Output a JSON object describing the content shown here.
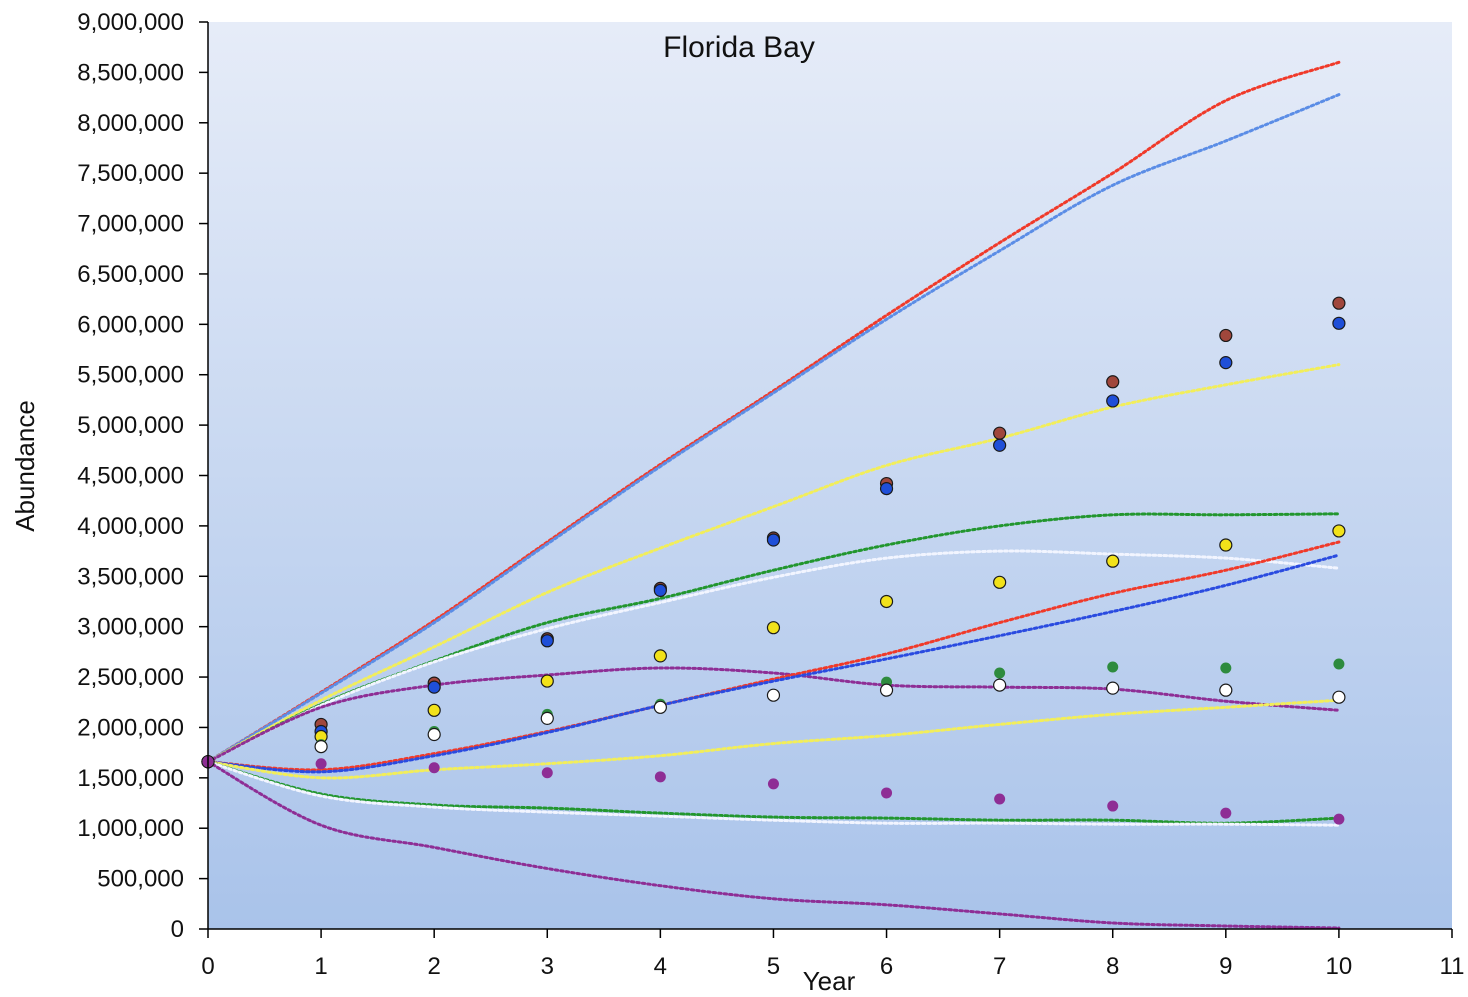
{
  "chart_data": {
    "type": "scatter",
    "title": "Florida Bay",
    "xlabel": "Year",
    "ylabel": "Abundance",
    "xlim": [
      0,
      11
    ],
    "ylim": [
      0,
      9000000
    ],
    "x_ticks": [
      "0",
      "1",
      "2",
      "3",
      "4",
      "5",
      "6",
      "7",
      "8",
      "9",
      "10",
      "11"
    ],
    "y_ticks": [
      "0",
      "500,000",
      "1,000,000",
      "1,500,000",
      "2,000,000",
      "2,500,000",
      "3,000,000",
      "3,500,000",
      "4,000,000",
      "4,500,000",
      "5,000,000",
      "5,500,000",
      "6,000,000",
      "6,500,000",
      "7,000,000",
      "7,500,000",
      "8,000,000",
      "8,500,000",
      "9,000,000"
    ],
    "grid": false,
    "background": {
      "top": "#e6ecf8",
      "bottom": "#a9c3ea"
    },
    "series": [
      {
        "color": "#a0473c",
        "marker": "circle-outlined",
        "x": [
          0,
          1,
          2,
          3,
          4,
          5,
          6,
          7,
          8,
          9,
          10
        ],
        "values": [
          1660000,
          2030000,
          2440000,
          2880000,
          3380000,
          3880000,
          4420000,
          4920000,
          5430000,
          5890000,
          6210000
        ]
      },
      {
        "color": "#1f4fd8",
        "marker": "circle-outlined",
        "x": [
          0,
          1,
          2,
          3,
          4,
          5,
          6,
          7,
          8,
          9,
          10
        ],
        "values": [
          1660000,
          1960000,
          2400000,
          2860000,
          3360000,
          3860000,
          4370000,
          4800000,
          5240000,
          5620000,
          6010000
        ]
      },
      {
        "color": "#f2e21a",
        "marker": "circle-outlined",
        "x": [
          0,
          1,
          2,
          3,
          4,
          5,
          6,
          7,
          8,
          9,
          10
        ],
        "values": [
          1660000,
          1910000,
          2170000,
          2460000,
          2710000,
          2990000,
          3250000,
          3440000,
          3650000,
          3810000,
          3950000
        ]
      },
      {
        "color": "#2e8b3e",
        "marker": "dot",
        "x": [
          0,
          1,
          2,
          3,
          4,
          5,
          6,
          7,
          8,
          9,
          10
        ],
        "values": [
          1660000,
          1830000,
          1960000,
          2130000,
          2230000,
          2320000,
          2450000,
          2540000,
          2600000,
          2590000,
          2630000
        ]
      },
      {
        "color": "#ffffff",
        "marker": "circle-outlined",
        "x": [
          0,
          1,
          2,
          3,
          4,
          5,
          6,
          7,
          8,
          9,
          10
        ],
        "values": [
          1660000,
          1810000,
          1930000,
          2090000,
          2200000,
          2320000,
          2370000,
          2420000,
          2390000,
          2370000,
          2300000
        ]
      },
      {
        "color": "#8e2e95",
        "marker": "dot",
        "x": [
          0,
          1,
          2,
          3,
          4,
          5,
          6,
          7,
          8,
          9,
          10
        ],
        "values": [
          1660000,
          1640000,
          1600000,
          1550000,
          1510000,
          1440000,
          1350000,
          1290000,
          1220000,
          1150000,
          1090000
        ]
      }
    ],
    "bounds": [
      {
        "color": "#f03a2a",
        "x": [
          0,
          1,
          2,
          3,
          4,
          5,
          6,
          7,
          8,
          9,
          10
        ],
        "values": [
          1660000,
          2350000,
          3060000,
          3840000,
          4610000,
          5340000,
          6090000,
          6810000,
          7500000,
          8220000,
          8600000
        ]
      },
      {
        "color": "#5b8de6",
        "x": [
          0,
          1,
          2,
          3,
          4,
          5,
          6,
          7,
          8,
          9,
          10
        ],
        "values": [
          1660000,
          2340000,
          3040000,
          3820000,
          4590000,
          5320000,
          6050000,
          6730000,
          7380000,
          7820000,
          8280000
        ]
      },
      {
        "color": "#f2ee5a",
        "x": [
          0,
          1,
          2,
          3,
          4,
          5,
          6,
          7,
          8,
          9,
          10
        ],
        "values": [
          1660000,
          2270000,
          2800000,
          3340000,
          3780000,
          4190000,
          4600000,
          4870000,
          5180000,
          5400000,
          5600000
        ]
      },
      {
        "color": "#22962e",
        "x": [
          0,
          1,
          2,
          3,
          4,
          5,
          6,
          7,
          8,
          9,
          10
        ],
        "values": [
          1660000,
          2230000,
          2660000,
          3040000,
          3280000,
          3560000,
          3810000,
          4000000,
          4110000,
          4110000,
          4120000
        ]
      },
      {
        "color": "#f2f5ff",
        "x": [
          0,
          1,
          2,
          3,
          4,
          5,
          6,
          7,
          8,
          9,
          10
        ],
        "values": [
          1660000,
          2220000,
          2650000,
          2980000,
          3240000,
          3490000,
          3680000,
          3750000,
          3720000,
          3680000,
          3580000
        ]
      },
      {
        "color": "#8e2e95",
        "x": [
          0,
          1,
          2,
          3,
          4,
          5,
          6,
          7,
          8,
          9,
          10
        ],
        "values": [
          1660000,
          2200000,
          2420000,
          2520000,
          2590000,
          2540000,
          2420000,
          2400000,
          2380000,
          2260000,
          2170000
        ]
      },
      {
        "color": "#f03a2a",
        "x": [
          0,
          1,
          2,
          3,
          4,
          5,
          6,
          7,
          8,
          9,
          10
        ],
        "values": [
          1660000,
          1580000,
          1740000,
          1960000,
          2220000,
          2480000,
          2730000,
          3040000,
          3330000,
          3560000,
          3840000
        ]
      },
      {
        "color": "#2a4be0",
        "x": [
          0,
          1,
          2,
          3,
          4,
          5,
          6,
          7,
          8,
          9,
          10
        ],
        "values": [
          1660000,
          1560000,
          1720000,
          1950000,
          2220000,
          2460000,
          2680000,
          2910000,
          3150000,
          3410000,
          3710000
        ]
      },
      {
        "color": "#f2ee5a",
        "x": [
          0,
          1,
          2,
          3,
          4,
          5,
          6,
          7,
          8,
          9,
          10
        ],
        "values": [
          1660000,
          1500000,
          1580000,
          1640000,
          1720000,
          1840000,
          1920000,
          2030000,
          2130000,
          2200000,
          2270000
        ]
      },
      {
        "color": "#22962e",
        "x": [
          0,
          1,
          2,
          3,
          4,
          5,
          6,
          7,
          8,
          9,
          10
        ],
        "values": [
          1660000,
          1340000,
          1230000,
          1200000,
          1150000,
          1110000,
          1100000,
          1080000,
          1080000,
          1050000,
          1100000
        ]
      },
      {
        "color": "#f2f5ff",
        "x": [
          0,
          1,
          2,
          3,
          4,
          5,
          6,
          7,
          8,
          9,
          10
        ],
        "values": [
          1660000,
          1320000,
          1210000,
          1160000,
          1120000,
          1080000,
          1050000,
          1050000,
          1040000,
          1040000,
          1030000
        ]
      },
      {
        "color": "#8e2e95",
        "x": [
          0,
          1,
          2,
          3,
          4,
          5,
          6,
          7,
          8,
          9,
          10
        ],
        "values": [
          1660000,
          1030000,
          810000,
          600000,
          430000,
          300000,
          240000,
          150000,
          60000,
          30000,
          10000
        ]
      }
    ]
  }
}
